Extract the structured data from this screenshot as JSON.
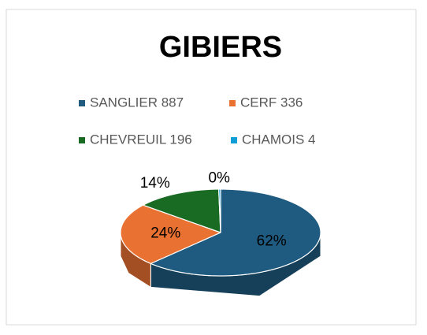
{
  "chart_data": {
    "type": "pie3d",
    "title": "GIBIERS",
    "categories": [
      "SANGLIER 887",
      "CERF 336",
      "CHEVREUIL 196",
      "CHAMOIS 4"
    ],
    "values": [
      62.3,
      23.6,
      13.8,
      0.3
    ],
    "value_labels": [
      "62%",
      "24%",
      "14%",
      "0%"
    ],
    "colors": [
      "#1f5b80",
      "#e97132",
      "#196b24",
      "#0f9ed5"
    ],
    "legend": "top"
  }
}
